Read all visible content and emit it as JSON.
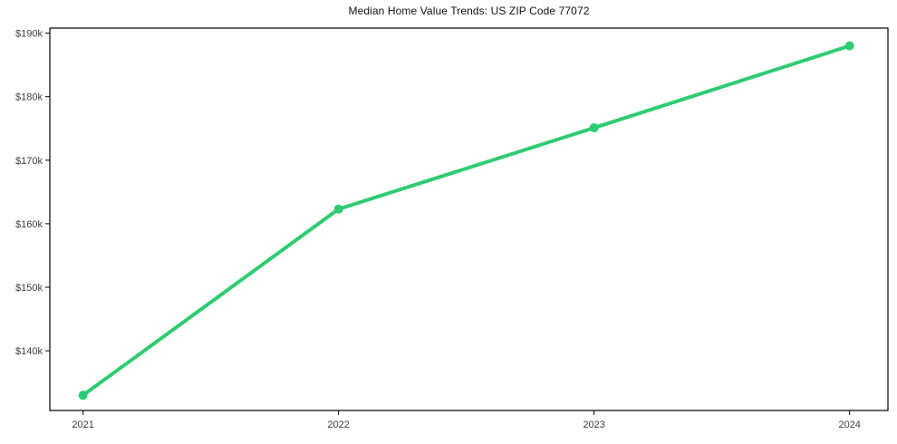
{
  "page": {
    "background": "#ffffff"
  },
  "chart": {
    "title_color": "#111111",
    "axis_color": "#000000",
    "tick_label_color": "#3d3d3d",
    "line_color": "#2ecc71",
    "marker_color": "#2ecc71"
  },
  "chart_data": {
    "type": "line",
    "title": "Median Home Value Trends: US ZIP Code 77072",
    "x": [
      2021,
      2022,
      2023,
      2024
    ],
    "values": [
      133000,
      162300,
      175100,
      188000
    ],
    "xlabel": "",
    "ylabel": "",
    "xlim": [
      2020.87,
      2024.15
    ],
    "ylim": [
      130600,
      190800
    ],
    "grid": false,
    "legend": false,
    "marker": "circle",
    "xticks": [
      {
        "value": 2021,
        "label": "2021"
      },
      {
        "value": 2022,
        "label": "2022"
      },
      {
        "value": 2023,
        "label": "2023"
      },
      {
        "value": 2024,
        "label": "2024"
      }
    ],
    "yticks": [
      {
        "value": 140000,
        "label": "$140k"
      },
      {
        "value": 150000,
        "label": "$150k"
      },
      {
        "value": 160000,
        "label": "$160k"
      },
      {
        "value": 170000,
        "label": "$170k"
      },
      {
        "value": 180000,
        "label": "$180k"
      },
      {
        "value": 190000,
        "label": "$190k"
      }
    ]
  }
}
